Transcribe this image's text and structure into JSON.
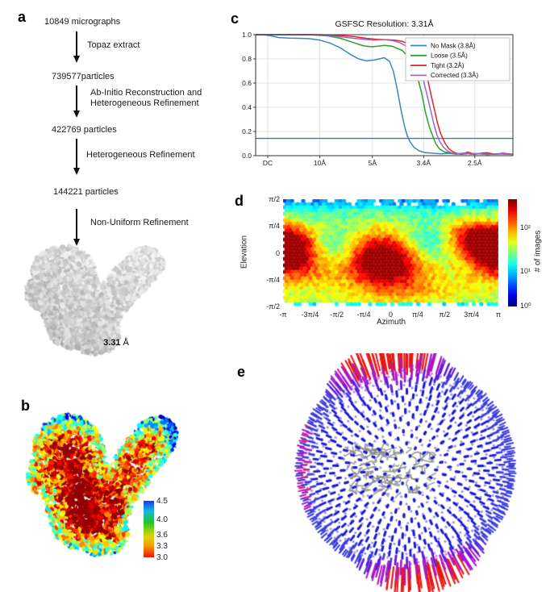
{
  "figure": {
    "background": "#ffffff",
    "panels": {
      "a": {
        "label": "a",
        "flow": {
          "node1": "10849 micrographs",
          "arrow1": "Topaz extract",
          "node2": "739577particles",
          "arrow2_line1": "Ab-Initio Reconstruction and",
          "arrow2_line2": "Heterogeneous Refinement",
          "node3": "422769 particles",
          "arrow3": "Heterogeneous Refinement",
          "node4": "144221 particles",
          "arrow4": "Non-Uniform Refinement"
        },
        "resolution_bold": "3.31",
        "resolution_unit": " Å"
      },
      "b": {
        "label": "b",
        "colorbar": {
          "tick_labels": [
            "4.5",
            "4.0",
            "3.6",
            "3.3",
            "3.0"
          ],
          "value_range": [
            3.0,
            4.5
          ],
          "top_color_meaning": "worse resolution (blue)",
          "bottom_color_meaning": "better resolution (red)"
        }
      },
      "c": {
        "label": "c"
      },
      "d": {
        "label": "d"
      },
      "e": {
        "label": "e"
      }
    }
  },
  "chart_data": [
    {
      "type": "line",
      "panel": "c",
      "title": "GSFSC Resolution: 3.31Å",
      "xlabel": "",
      "ylabel": "",
      "ylim": [
        0.0,
        1.0
      ],
      "y_ticks": [
        0.0,
        0.2,
        0.4,
        0.6,
        0.8,
        1.0
      ],
      "x_tick_labels": [
        "DC",
        "10Å",
        "5Å",
        "3.4Å",
        "2.5Å"
      ],
      "x_tick_pos": [
        0.047,
        0.249,
        0.454,
        0.653,
        0.852
      ],
      "threshold": 0.143,
      "threshold_color": "#2e7ebc",
      "grid": true,
      "legend_position": "upper right",
      "series": [
        {
          "name": "No Mask (3.8Å)",
          "color": "#3b85c6",
          "points": [
            [
              0,
              1.0
            ],
            [
              0.03,
              1.0
            ],
            [
              0.06,
              0.99
            ],
            [
              0.09,
              0.976
            ],
            [
              0.13,
              0.972
            ],
            [
              0.17,
              0.97
            ],
            [
              0.21,
              0.967
            ],
            [
              0.25,
              0.955
            ],
            [
              0.29,
              0.93
            ],
            [
              0.33,
              0.89
            ],
            [
              0.37,
              0.835
            ],
            [
              0.4,
              0.8
            ],
            [
              0.43,
              0.783
            ],
            [
              0.46,
              0.79
            ],
            [
              0.48,
              0.8
            ],
            [
              0.5,
              0.81
            ],
            [
              0.52,
              0.78
            ],
            [
              0.535,
              0.7
            ],
            [
              0.55,
              0.55
            ],
            [
              0.565,
              0.38
            ],
            [
              0.578,
              0.25
            ],
            [
              0.59,
              0.16
            ],
            [
              0.6,
              0.115
            ],
            [
              0.615,
              0.07
            ],
            [
              0.635,
              0.04
            ],
            [
              0.66,
              0.025
            ],
            [
              0.69,
              0.02
            ],
            [
              0.72,
              0.015
            ],
            [
              0.75,
              0.02
            ],
            [
              0.78,
              0.012
            ],
            [
              0.81,
              0.022
            ],
            [
              0.84,
              0.012
            ],
            [
              0.88,
              0.018
            ],
            [
              0.92,
              0.012
            ],
            [
              0.96,
              0.015
            ],
            [
              1,
              0.012
            ]
          ]
        },
        {
          "name": "Loose (3.5Å)",
          "color": "#2ca02c",
          "points": [
            [
              0,
              1.0
            ],
            [
              0.1,
              1.0
            ],
            [
              0.18,
              1.0
            ],
            [
              0.22,
              0.998
            ],
            [
              0.28,
              0.99
            ],
            [
              0.33,
              0.97
            ],
            [
              0.38,
              0.935
            ],
            [
              0.42,
              0.907
            ],
            [
              0.45,
              0.9
            ],
            [
              0.48,
              0.906
            ],
            [
              0.5,
              0.912
            ],
            [
              0.53,
              0.905
            ],
            [
              0.57,
              0.87
            ],
            [
              0.6,
              0.8
            ],
            [
              0.625,
              0.68
            ],
            [
              0.645,
              0.52
            ],
            [
              0.66,
              0.36
            ],
            [
              0.675,
              0.24
            ],
            [
              0.69,
              0.155
            ],
            [
              0.7,
              0.1
            ],
            [
              0.715,
              0.055
            ],
            [
              0.735,
              0.03
            ],
            [
              0.76,
              0.02
            ],
            [
              0.8,
              0.012
            ],
            [
              0.85,
              0.018
            ],
            [
              0.9,
              0.01
            ],
            [
              0.95,
              0.015
            ],
            [
              1,
              0.01
            ]
          ]
        },
        {
          "name": "Tight (3.2Å)",
          "color": "#e32426",
          "points": [
            [
              0,
              1.0
            ],
            [
              0.15,
              1.0
            ],
            [
              0.25,
              1.0
            ],
            [
              0.32,
              0.995
            ],
            [
              0.38,
              0.985
            ],
            [
              0.43,
              0.97
            ],
            [
              0.47,
              0.962
            ],
            [
              0.51,
              0.958
            ],
            [
              0.54,
              0.955
            ],
            [
              0.57,
              0.945
            ],
            [
              0.6,
              0.92
            ],
            [
              0.625,
              0.88
            ],
            [
              0.635,
              0.86
            ],
            [
              0.655,
              0.75
            ],
            [
              0.67,
              0.62
            ],
            [
              0.682,
              0.5
            ],
            [
              0.695,
              0.38
            ],
            [
              0.707,
              0.27
            ],
            [
              0.718,
              0.19
            ],
            [
              0.727,
              0.145
            ],
            [
              0.737,
              0.1
            ],
            [
              0.75,
              0.06
            ],
            [
              0.765,
              0.035
            ],
            [
              0.78,
              0.02
            ],
            [
              0.8,
              0.012
            ],
            [
              0.825,
              0.03
            ],
            [
              0.85,
              0.01
            ],
            [
              0.875,
              0.02
            ],
            [
              0.9,
              0.025
            ],
            [
              0.93,
              0.012
            ],
            [
              0.96,
              0.02
            ],
            [
              1,
              0.012
            ]
          ]
        },
        {
          "name": "Corrected (3.3Å)",
          "color": "#9c63ce",
          "points": [
            [
              0,
              1.0
            ],
            [
              0.15,
              1.0
            ],
            [
              0.22,
              1.0
            ],
            [
              0.3,
              0.99
            ],
            [
              0.36,
              0.975
            ],
            [
              0.42,
              0.962
            ],
            [
              0.46,
              0.955
            ],
            [
              0.5,
              0.958
            ],
            [
              0.53,
              0.952
            ],
            [
              0.56,
              0.935
            ],
            [
              0.59,
              0.9
            ],
            [
              0.615,
              0.86
            ],
            [
              0.64,
              0.72
            ],
            [
              0.655,
              0.6
            ],
            [
              0.67,
              0.47
            ],
            [
              0.683,
              0.35
            ],
            [
              0.694,
              0.25
            ],
            [
              0.705,
              0.17
            ],
            [
              0.715,
              0.12
            ],
            [
              0.73,
              0.07
            ],
            [
              0.745,
              0.04
            ],
            [
              0.76,
              0.025
            ],
            [
              0.78,
              0.015
            ],
            [
              0.81,
              0.02
            ],
            [
              0.84,
              0.012
            ],
            [
              0.87,
              0.018
            ],
            [
              0.9,
              0.01
            ],
            [
              0.94,
              0.015
            ],
            [
              1,
              0.012
            ]
          ]
        }
      ]
    },
    {
      "type": "heatmap",
      "panel": "d",
      "xlabel": "Azimuth",
      "ylabel": "Elevation",
      "x_ticks": [
        "-π",
        "-3π/4",
        "-π/2",
        "-π/4",
        "0",
        "π/4",
        "π/2",
        "3π/4",
        "π"
      ],
      "y_ticks": [
        "π/2",
        "π/4",
        "0",
        "-π/4",
        "-π/2"
      ],
      "xlim_rad": [
        -3.14159,
        3.14159
      ],
      "ylim_rad": [
        -1.5708,
        1.5708
      ],
      "scale": "log",
      "colorbar_label": "# of images",
      "colorbar_ticks": [
        "10²",
        "10¹",
        "10⁰"
      ],
      "colorbar_tick_pos": [
        0.27,
        0.675,
        1.0
      ],
      "colormap": "jet",
      "background_level": 0.56,
      "hotspots": [
        {
          "azimuth": -3.1,
          "elevation": 0.12,
          "sx": 0.55,
          "sy": 0.38,
          "amp": 0.4
        },
        {
          "azimuth": 3.1,
          "elevation": 0.1,
          "sx": 0.6,
          "sy": 0.42,
          "amp": 0.4
        },
        {
          "azimuth": -0.15,
          "elevation": -0.28,
          "sx": 0.75,
          "sy": 0.5,
          "amp": 0.45
        },
        {
          "azimuth": -0.4,
          "elevation": -0.05,
          "sx": 0.5,
          "sy": 0.4,
          "amp": 0.18
        },
        {
          "azimuth": 2.35,
          "elevation": 0.5,
          "sx": 0.55,
          "sy": 0.35,
          "amp": 0.26
        },
        {
          "azimuth": -2.5,
          "elevation": -0.55,
          "sx": 0.8,
          "sy": 0.35,
          "amp": 0.16
        },
        {
          "azimuth": 0.5,
          "elevation": -1.0,
          "sx": 1.2,
          "sy": 0.4,
          "amp": 0.12
        },
        {
          "azimuth": 1.1,
          "elevation": 0.35,
          "sx": 0.45,
          "sy": 0.4,
          "amp": -0.2
        },
        {
          "azimuth": -1.6,
          "elevation": 0.25,
          "sx": 0.5,
          "sy": 0.45,
          "amp": -0.12
        }
      ]
    },
    {
      "type": "scatter",
      "panel": "e",
      "description": "3D angular distribution of particle views: sticks on a sphere, length/color encode view count, gray density map at center",
      "n_points": 1500,
      "low_count_color": "#2a2ad0",
      "mid_count_color": "#a819c9",
      "high_count_color": "#e81515",
      "pole_axis": [
        -0.17,
        0.97,
        0.06
      ],
      "molecule_color": "#9a9a9a"
    }
  ]
}
